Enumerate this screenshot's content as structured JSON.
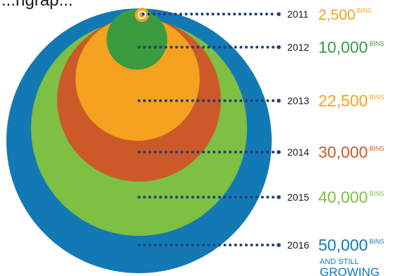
{
  "header": {
    "fragment": "...ngrap..."
  },
  "chart_data": {
    "type": "bubble",
    "unit": "BINS",
    "series": [
      {
        "year": "2011",
        "value": 2500,
        "label": "2,500",
        "color": "#f4a21f"
      },
      {
        "year": "2012",
        "value": 10000,
        "label": "10,000",
        "color": "#3b9c3f"
      },
      {
        "year": "2013",
        "value": 22500,
        "label": "22,500",
        "color": "#f4a21f"
      },
      {
        "year": "2014",
        "value": 30000,
        "label": "30,000",
        "color": "#cc5a28"
      },
      {
        "year": "2015",
        "value": 40000,
        "label": "40,000",
        "color": "#7dc043"
      },
      {
        "year": "2016",
        "value": 50000,
        "label": "50,000",
        "color": "#1379b4"
      }
    ],
    "footnote": {
      "line1": "AND STILL",
      "line2": "GROWING",
      "color": "#1379b4"
    },
    "leader_color": "#223e78",
    "year_text_color": "#1a1a1a"
  }
}
